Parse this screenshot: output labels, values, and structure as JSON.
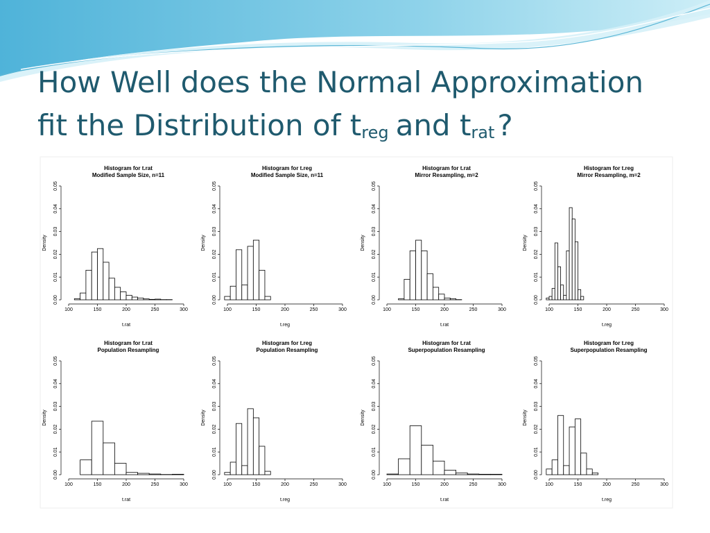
{
  "title": {
    "parts": [
      "How Well does the Normal Approximation",
      "fit the Distribution of t",
      "reg",
      "and t",
      "rat",
      "?"
    ]
  },
  "chart_data": [
    {
      "type": "histogram",
      "title": "Histogram for t.rat",
      "subtitle": "Modified Sample Size, n=11",
      "xlabel": "t.rat",
      "ylabel": "Density",
      "bins": [
        110,
        120,
        130,
        140,
        150,
        160,
        170,
        180,
        190,
        200,
        210,
        220,
        230,
        240,
        250,
        260,
        270,
        280
      ],
      "values": [
        0.0005,
        0.003,
        0.013,
        0.021,
        0.0225,
        0.0165,
        0.0095,
        0.0055,
        0.0035,
        0.002,
        0.0012,
        0.0008,
        0.0004,
        0.0002,
        0.0003,
        0.0001,
        0.0001
      ],
      "xlim": [
        100,
        300
      ],
      "ylim": [
        0,
        0.05
      ],
      "xticks": [
        100,
        150,
        200,
        250,
        300
      ],
      "yticks": [
        {
          "value": 0,
          "label": "0.00"
        },
        {
          "value": 0.01,
          "label": "0.01"
        },
        {
          "value": 0.02,
          "label": "0.02"
        },
        {
          "value": 0.03,
          "label": "0.03"
        },
        {
          "value": 0.04,
          "label": "0.04"
        },
        {
          "value": 0.05,
          "label": "0.05"
        }
      ]
    },
    {
      "type": "histogram",
      "title": "Histogram for t.reg",
      "subtitle": "Modified Sample Size, n=11",
      "xlabel": "t.reg",
      "ylabel": "Density",
      "bins": [
        95,
        105,
        115,
        125,
        135,
        145,
        155,
        165,
        175
      ],
      "values": [
        0.0015,
        0.006,
        0.022,
        0.0065,
        0.0235,
        0.0262,
        0.013,
        0.0015
      ],
      "xlim": [
        100,
        300
      ],
      "ylim": [
        0,
        0.05
      ],
      "xticks": [
        100,
        150,
        200,
        250,
        300
      ],
      "yticks": [
        {
          "value": 0,
          "label": "0.00"
        },
        {
          "value": 0.01,
          "label": "0.01"
        },
        {
          "value": 0.02,
          "label": "0.02"
        },
        {
          "value": 0.03,
          "label": "0.03"
        },
        {
          "value": 0.04,
          "label": "0.04"
        },
        {
          "value": 0.05,
          "label": "0.05"
        }
      ]
    },
    {
      "type": "histogram",
      "title": "Histogram for t.rat",
      "subtitle": "Mirror Resampling, m=2",
      "xlabel": "t.rat",
      "ylabel": "Density",
      "bins": [
        120,
        130,
        140,
        150,
        160,
        170,
        180,
        190,
        200,
        210,
        220,
        230
      ],
      "values": [
        0.0005,
        0.009,
        0.0215,
        0.0262,
        0.0215,
        0.0115,
        0.0055,
        0.0025,
        0.0008,
        0.0005,
        0.0001
      ],
      "xlim": [
        100,
        300
      ],
      "ylim": [
        0,
        0.05
      ],
      "xticks": [
        100,
        150,
        200,
        250,
        300
      ],
      "yticks": [
        {
          "value": 0,
          "label": "0.00"
        },
        {
          "value": 0.01,
          "label": "0.01"
        },
        {
          "value": 0.02,
          "label": "0.02"
        },
        {
          "value": 0.03,
          "label": "0.03"
        },
        {
          "value": 0.04,
          "label": "0.04"
        },
        {
          "value": 0.05,
          "label": "0.05"
        }
      ]
    },
    {
      "type": "histogram",
      "title": "Histogram for t.reg",
      "subtitle": "Mirror Resampling, m=2",
      "xlabel": "t.reg",
      "ylabel": "Density",
      "bins": [
        95,
        100,
        105,
        110,
        115,
        120,
        125,
        130,
        135,
        140,
        145,
        150,
        155,
        160
      ],
      "values": [
        0.0008,
        0.0015,
        0.005,
        0.025,
        0.0145,
        0.0065,
        0.002,
        0.0215,
        0.0405,
        0.0355,
        0.0255,
        0.0045,
        0.0015
      ],
      "xlim": [
        100,
        300
      ],
      "ylim": [
        0,
        0.05
      ],
      "xticks": [
        100,
        150,
        200,
        250,
        300
      ],
      "yticks": [
        {
          "value": 0,
          "label": "0.00"
        },
        {
          "value": 0.01,
          "label": "0.01"
        },
        {
          "value": 0.02,
          "label": "0.02"
        },
        {
          "value": 0.03,
          "label": "0.03"
        },
        {
          "value": 0.04,
          "label": "0.04"
        },
        {
          "value": 0.05,
          "label": "0.05"
        }
      ]
    },
    {
      "type": "histogram",
      "title": "Histogram for t.rat",
      "subtitle": "Population Resampling",
      "xlabel": "t.rat",
      "ylabel": "Density",
      "bins": [
        120,
        140,
        160,
        180,
        200,
        220,
        240,
        260,
        280,
        300
      ],
      "values": [
        0.0065,
        0.0235,
        0.014,
        0.005,
        0.001,
        0.0006,
        0.0003,
        0.0001,
        0.0002
      ],
      "xlim": [
        100,
        300
      ],
      "ylim": [
        0,
        0.05
      ],
      "xticks": [
        100,
        150,
        200,
        250,
        300
      ],
      "yticks": [
        {
          "value": 0,
          "label": "0.00"
        },
        {
          "value": 0.01,
          "label": "0.01"
        },
        {
          "value": 0.02,
          "label": "0.02"
        },
        {
          "value": 0.03,
          "label": "0.03"
        },
        {
          "value": 0.04,
          "label": "0.04"
        },
        {
          "value": 0.05,
          "label": "0.05"
        }
      ]
    },
    {
      "type": "histogram",
      "title": "Histogram for t.reg",
      "subtitle": "Population Resampling",
      "xlabel": "t.reg",
      "ylabel": "Density",
      "bins": [
        95,
        105,
        115,
        125,
        135,
        145,
        155,
        165,
        175
      ],
      "values": [
        0.001,
        0.0055,
        0.0225,
        0.004,
        0.029,
        0.025,
        0.0125,
        0.0015
      ],
      "xlim": [
        100,
        300
      ],
      "ylim": [
        0,
        0.05
      ],
      "xticks": [
        100,
        150,
        200,
        250,
        300
      ],
      "yticks": [
        {
          "value": 0,
          "label": "0.00"
        },
        {
          "value": 0.01,
          "label": "0.01"
        },
        {
          "value": 0.02,
          "label": "0.02"
        },
        {
          "value": 0.03,
          "label": "0.03"
        },
        {
          "value": 0.04,
          "label": "0.04"
        },
        {
          "value": 0.05,
          "label": "0.05"
        }
      ]
    },
    {
      "type": "histogram",
      "title": "Histogram for t.rat",
      "subtitle": "Superpopulation Resampling",
      "xlabel": "t.rat",
      "ylabel": "Density",
      "bins": [
        100,
        120,
        140,
        160,
        180,
        200,
        220,
        240,
        260,
        280,
        300
      ],
      "values": [
        0.0003,
        0.007,
        0.0215,
        0.013,
        0.006,
        0.002,
        0.0008,
        0.0003,
        0.0002,
        0.0002
      ],
      "xlim": [
        100,
        300
      ],
      "ylim": [
        0,
        0.05
      ],
      "xticks": [
        100,
        150,
        200,
        250,
        300
      ],
      "yticks": [
        {
          "value": 0,
          "label": "0.00"
        },
        {
          "value": 0.01,
          "label": "0.01"
        },
        {
          "value": 0.02,
          "label": "0.02"
        },
        {
          "value": 0.03,
          "label": "0.03"
        },
        {
          "value": 0.04,
          "label": "0.04"
        },
        {
          "value": 0.05,
          "label": "0.05"
        }
      ]
    },
    {
      "type": "histogram",
      "title": "Histogram for t.reg",
      "subtitle": "Superpopulation Resampling",
      "xlabel": "t.reg",
      "ylabel": "Density",
      "bins": [
        95,
        105,
        115,
        125,
        135,
        145,
        155,
        165,
        175,
        185
      ],
      "values": [
        0.0025,
        0.0065,
        0.026,
        0.004,
        0.021,
        0.0245,
        0.0095,
        0.0025,
        0.0008
      ],
      "xlim": [
        100,
        300
      ],
      "ylim": [
        0,
        0.05
      ],
      "xticks": [
        100,
        150,
        200,
        250,
        300
      ],
      "yticks": [
        {
          "value": 0,
          "label": "0.00"
        },
        {
          "value": 0.01,
          "label": "0.01"
        },
        {
          "value": 0.02,
          "label": "0.02"
        },
        {
          "value": 0.03,
          "label": "0.03"
        },
        {
          "value": 0.04,
          "label": "0.04"
        },
        {
          "value": 0.05,
          "label": "0.05"
        }
      ]
    }
  ]
}
